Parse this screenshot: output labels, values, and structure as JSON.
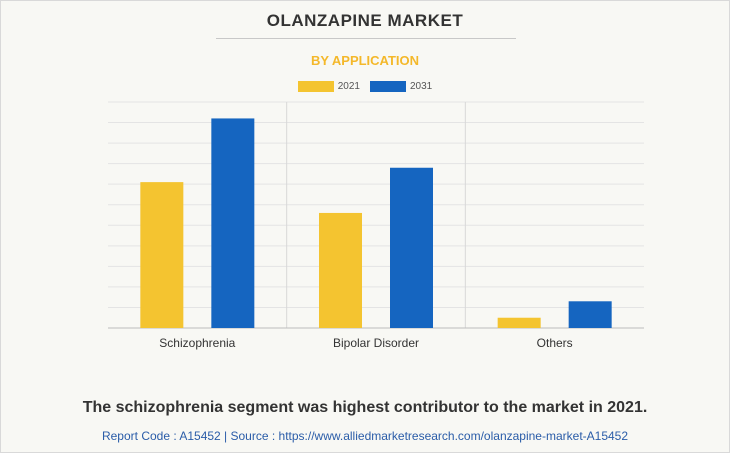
{
  "header": {
    "title": "OLANZAPINE MARKET",
    "subtitle": "BY APPLICATION"
  },
  "footer": {
    "caption": "The schizophrenia segment was highest contributor to the market in 2021.",
    "source": "Report Code : A15452  |  Source : https://www.alliedmarketresearch.com/olanzapine-market-A15452"
  },
  "colors": {
    "series_2021": "#f4c430",
    "series_2031": "#1565c0",
    "subtitle": "#f4b82a"
  },
  "chart_data": {
    "type": "bar",
    "title": "OLANZAPINE MARKET",
    "subtitle": "BY APPLICATION",
    "categories": [
      "Schizophrenia",
      "Bipolar Disorder",
      "Others"
    ],
    "series": [
      {
        "name": "2021",
        "values": [
          7.1,
          5.6,
          0.5
        ]
      },
      {
        "name": "2031",
        "values": [
          10.2,
          7.8,
          1.3
        ]
      }
    ],
    "ylim": [
      0,
      11
    ],
    "grid": true,
    "legend": "top-center",
    "xlabel": "",
    "ylabel": ""
  }
}
